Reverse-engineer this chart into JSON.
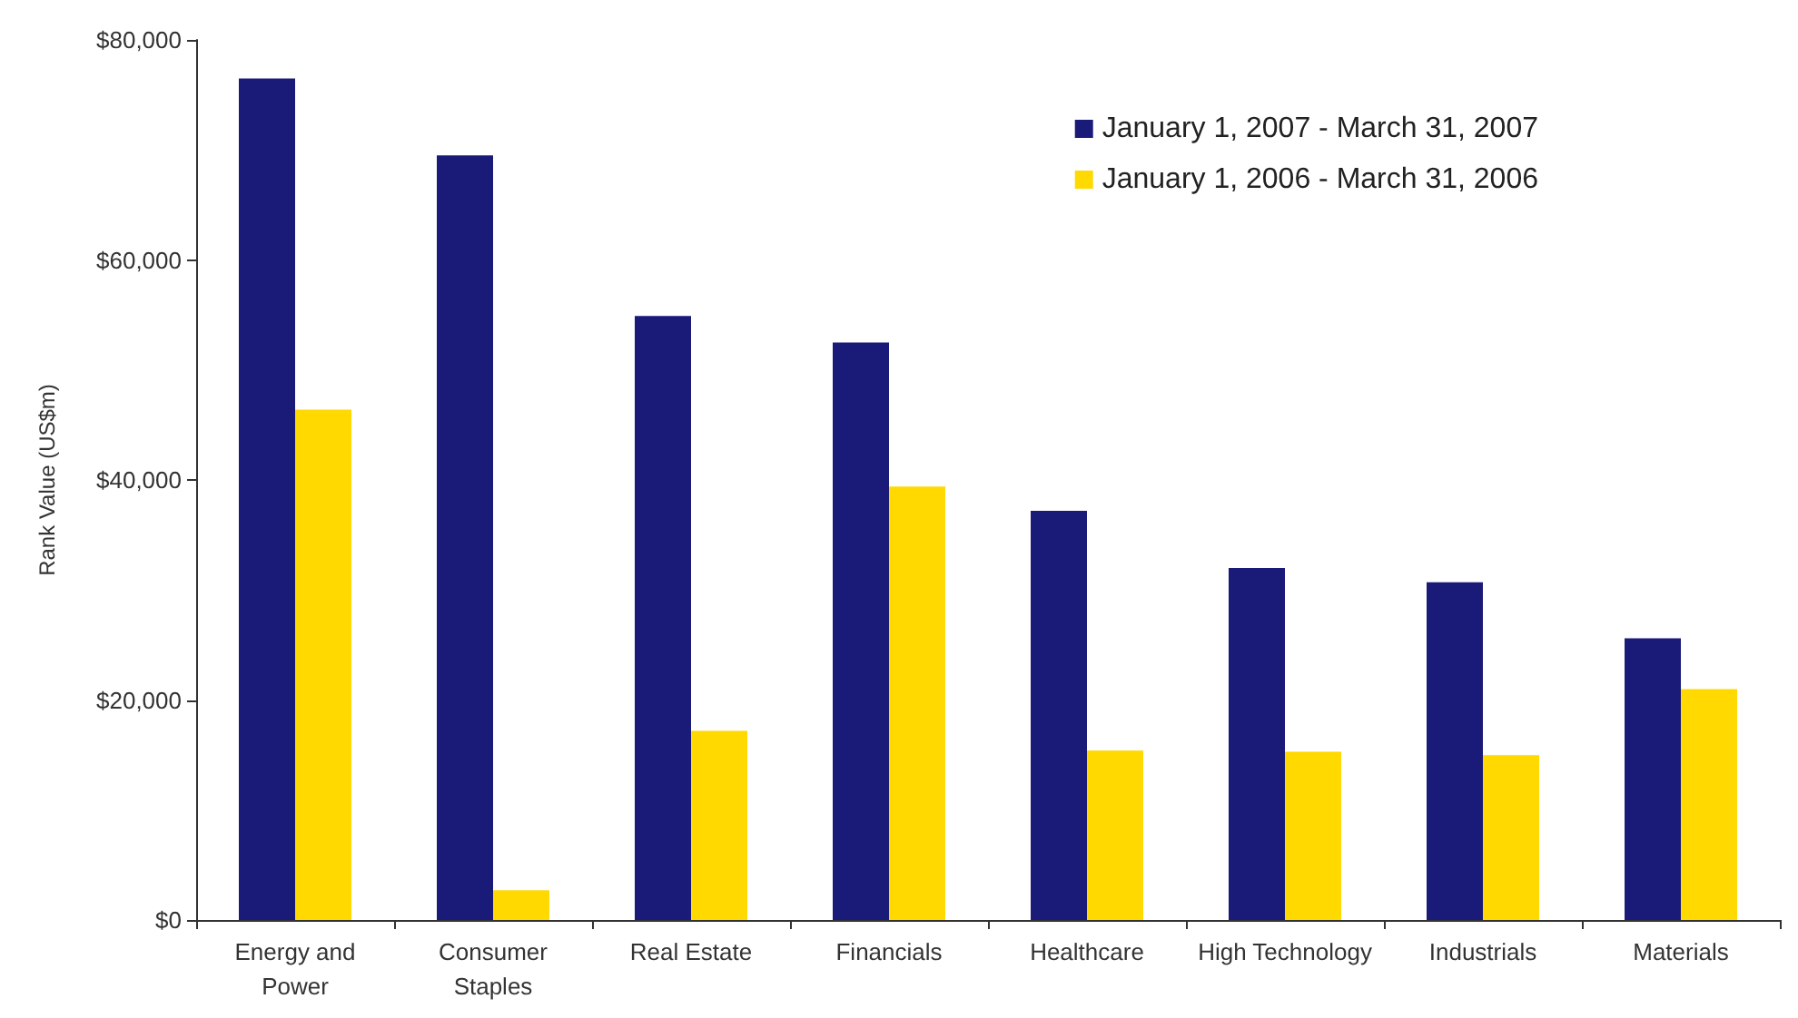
{
  "chart_data": {
    "type": "bar",
    "ylabel": "Rank Value (US$m)",
    "categories": [
      "Energy and\nPower",
      "Consumer\nStaples",
      "Real Estate",
      "Financials",
      "Healthcare",
      "High Technology",
      "Industrials",
      "Materials"
    ],
    "series": [
      {
        "name": "January 1, 2007 - March 31, 2007",
        "color": "#1a1a78",
        "values": [
          76500,
          69500,
          54900,
          52500,
          37200,
          32000,
          30700,
          25600
        ]
      },
      {
        "name": "January 1, 2006 - March 31, 2006",
        "color": "#ffd900",
        "values": [
          46400,
          2700,
          17200,
          39400,
          15400,
          15300,
          15000,
          21000
        ]
      }
    ],
    "ylim": [
      0,
      80000
    ],
    "yticks": [
      {
        "value": 0,
        "label": "$0"
      },
      {
        "value": 20000,
        "label": "$20,000"
      },
      {
        "value": 40000,
        "label": "$40,000"
      },
      {
        "value": 60000,
        "label": "$60,000"
      },
      {
        "value": 80000,
        "label": "$80,000"
      }
    ],
    "grid": false,
    "legend": "top right"
  }
}
